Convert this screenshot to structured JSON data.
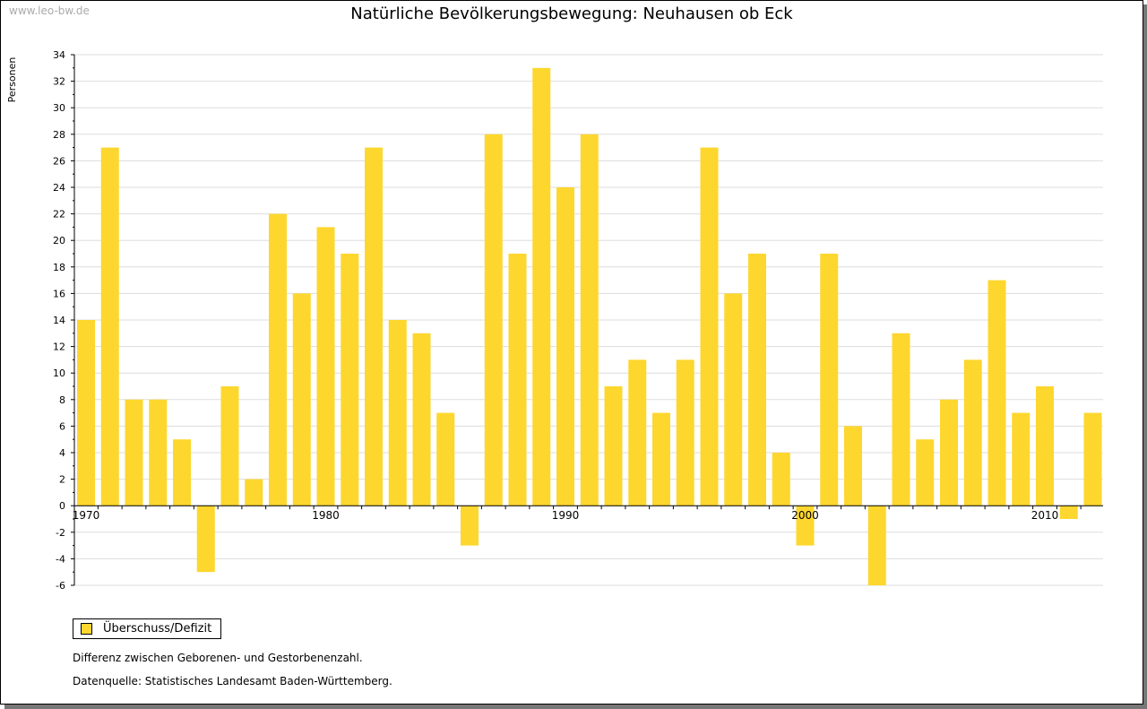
{
  "watermark": "www.leo-bw.de",
  "notes": [
    "Differenz zwischen Geborenen- und Gestorbenenzahl.",
    "Datenquelle: Statistisches Landesamt Baden-Württemberg."
  ],
  "chart_data": {
    "type": "bar",
    "title": "Natürliche Bevölkerungsbewegung: Neuhausen ob Eck",
    "ylabel": "Personen",
    "xlabel": "",
    "ylim": [
      -6,
      34
    ],
    "yticks": [
      -6,
      -4,
      -2,
      0,
      2,
      4,
      6,
      8,
      10,
      12,
      14,
      16,
      18,
      20,
      22,
      24,
      26,
      28,
      30,
      32,
      34
    ],
    "xtick_labels": [
      "1970",
      "1980",
      "1990",
      "2000",
      "2010"
    ],
    "grid": true,
    "legend_position": "bottom-left",
    "color": "#FDD72E",
    "categories": [
      1970,
      1971,
      1972,
      1973,
      1974,
      1975,
      1976,
      1977,
      1978,
      1979,
      1980,
      1981,
      1982,
      1983,
      1984,
      1985,
      1986,
      1987,
      1988,
      1989,
      1990,
      1991,
      1992,
      1993,
      1994,
      1995,
      1996,
      1997,
      1998,
      1999,
      2000,
      2001,
      2002,
      2003,
      2004,
      2005,
      2006,
      2007,
      2008,
      2009,
      2010,
      2011,
      2012
    ],
    "series": [
      {
        "name": "Überschuss/Defizit",
        "values": [
          14,
          27,
          8,
          8,
          5,
          -5,
          9,
          2,
          22,
          16,
          21,
          19,
          27,
          14,
          13,
          7,
          -3,
          28,
          19,
          33,
          24,
          28,
          9,
          11,
          7,
          11,
          27,
          16,
          19,
          4,
          -3,
          19,
          6,
          -6,
          13,
          5,
          8,
          11,
          17,
          7,
          9,
          -1,
          7
        ]
      }
    ]
  }
}
